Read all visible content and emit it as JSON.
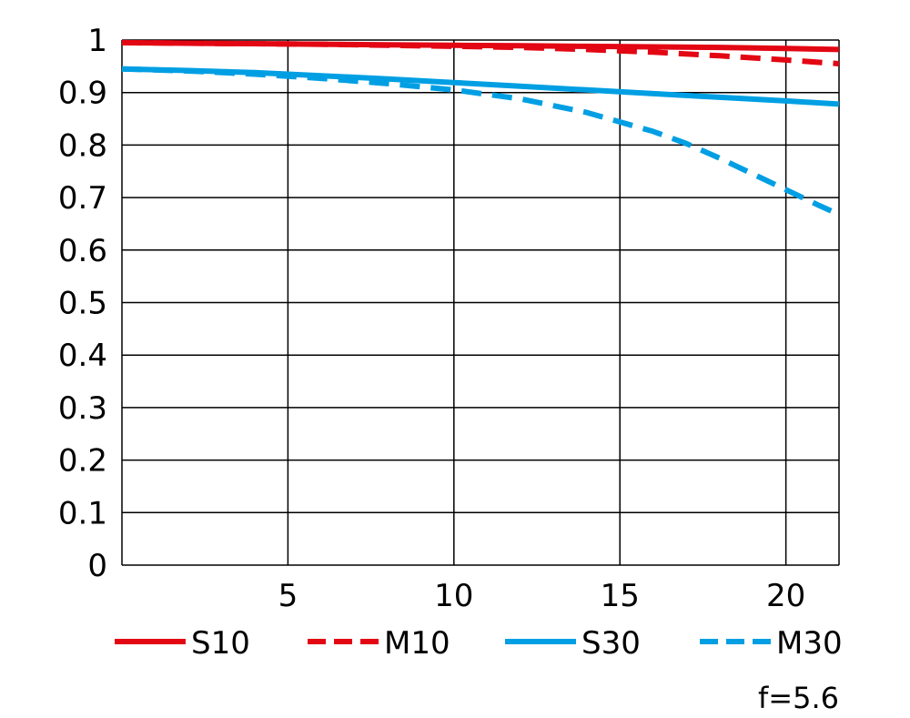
{
  "chart_data": {
    "type": "line",
    "title": "",
    "xlabel": "",
    "ylabel": "",
    "xlim": [
      0,
      21.6
    ],
    "ylim": [
      0,
      1
    ],
    "x_ticks": [
      5,
      10,
      15,
      20
    ],
    "y_ticks": [
      0,
      0.1,
      0.2,
      0.3,
      0.4,
      0.5,
      0.6,
      0.7,
      0.8,
      0.9,
      1
    ],
    "y_tick_labels": [
      "0",
      "0.1",
      "0.2",
      "0.3",
      "0.4",
      "0.5",
      "0.6",
      "0.7",
      "0.8",
      "0.9",
      "1"
    ],
    "grid": true,
    "legend_position": "bottom",
    "series": [
      {
        "name": "S10",
        "color": "#e30613",
        "dash": "solid",
        "x": [
          0,
          2,
          4,
          6,
          8,
          10,
          12,
          14,
          16,
          18,
          20,
          21.6
        ],
        "y": [
          0.995,
          0.994,
          0.993,
          0.992,
          0.991,
          0.99,
          0.989,
          0.988,
          0.987,
          0.986,
          0.984,
          0.982
        ]
      },
      {
        "name": "M10",
        "color": "#e30613",
        "dash": "dashed",
        "x": [
          0,
          2,
          4,
          6,
          8,
          10,
          12,
          14,
          16,
          18,
          20,
          21.6
        ],
        "y": [
          0.995,
          0.994,
          0.993,
          0.992,
          0.99,
          0.988,
          0.986,
          0.982,
          0.977,
          0.97,
          0.962,
          0.955
        ]
      },
      {
        "name": "S30",
        "color": "#009fe3",
        "dash": "solid",
        "x": [
          0,
          2,
          4,
          6,
          8,
          10,
          12,
          14,
          16,
          18,
          20,
          21.6
        ],
        "y": [
          0.945,
          0.942,
          0.938,
          0.932,
          0.926,
          0.919,
          0.912,
          0.905,
          0.898,
          0.891,
          0.884,
          0.878
        ]
      },
      {
        "name": "M30",
        "color": "#009fe3",
        "dash": "dashed",
        "x": [
          0,
          2,
          4,
          6,
          8,
          10,
          12,
          14,
          16,
          17,
          18,
          19,
          20,
          21,
          21.6
        ],
        "y": [
          0.945,
          0.941,
          0.935,
          0.927,
          0.917,
          0.905,
          0.888,
          0.862,
          0.826,
          0.803,
          0.775,
          0.745,
          0.715,
          0.685,
          0.668
        ]
      }
    ],
    "annotation": "f=5.6"
  }
}
